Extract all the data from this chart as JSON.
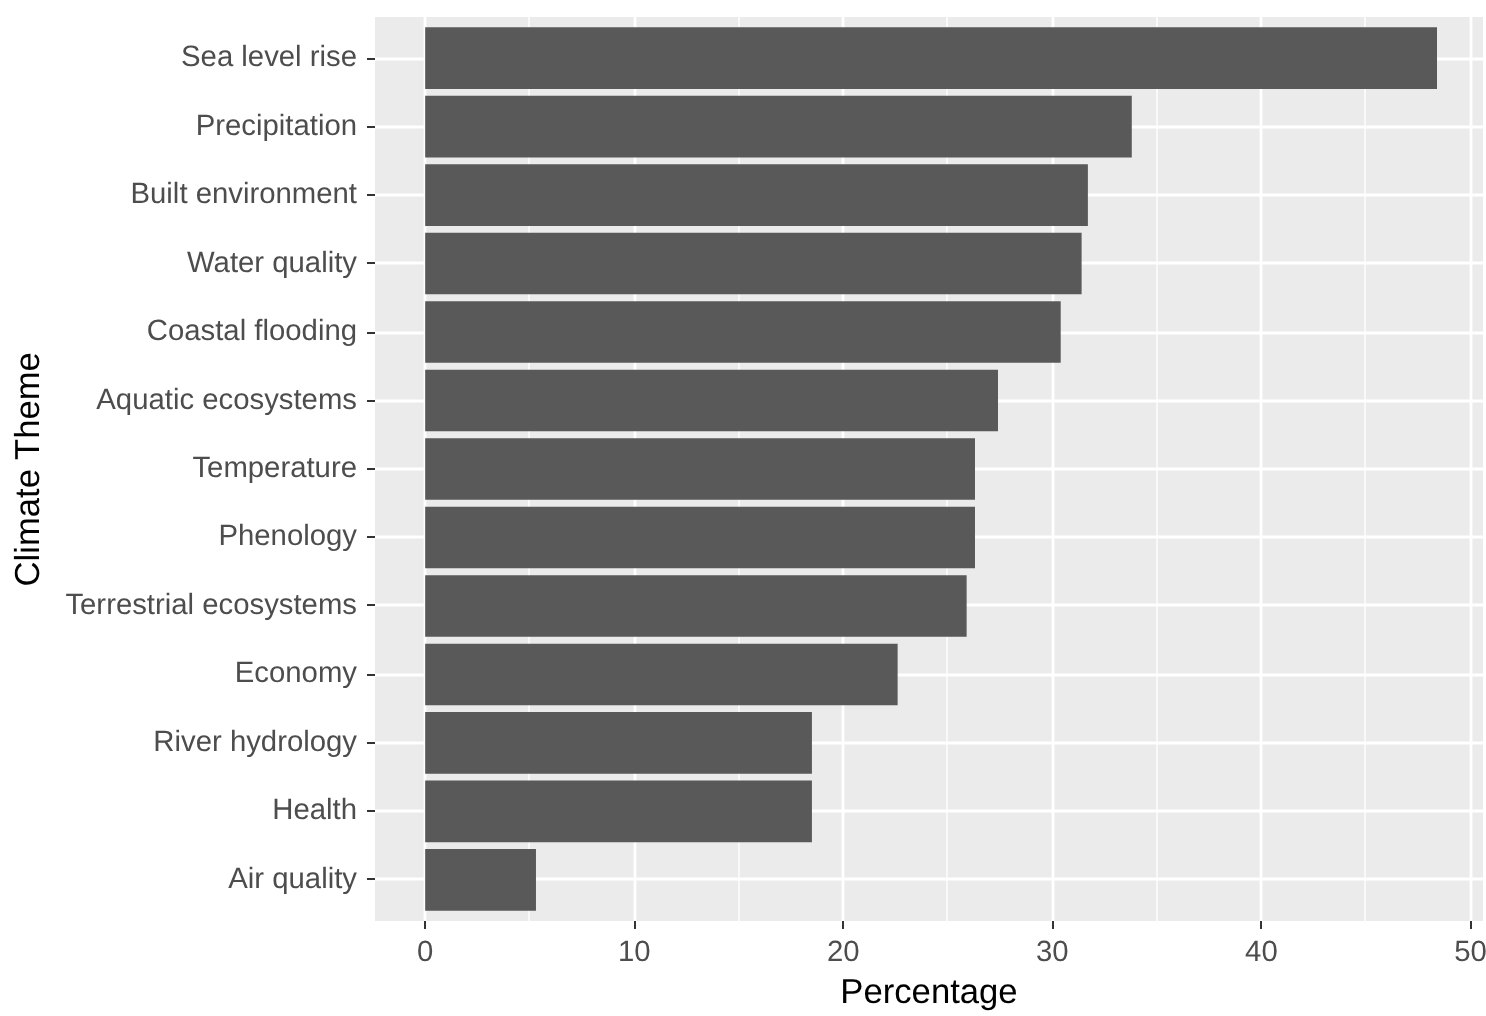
{
  "chart_data": {
    "type": "bar",
    "orientation": "horizontal",
    "xlabel": "Percentage",
    "ylabel": "Climate Theme",
    "categories": [
      "Sea level rise",
      "Precipitation",
      "Built environment",
      "Water quality",
      "Coastal flooding",
      "Aquatic ecosystems",
      "Temperature",
      "Phenology",
      "Terrestrial ecosystems",
      "Economy",
      "River hydrology",
      "Health",
      "Air quality"
    ],
    "values": [
      48.4,
      33.8,
      31.7,
      31.4,
      30.4,
      27.4,
      26.3,
      26.3,
      25.9,
      22.6,
      18.5,
      18.5,
      5.3
    ],
    "color": "#595959",
    "xlim": [
      -2.4,
      50.6
    ],
    "xticks": [
      0,
      10,
      20,
      30,
      40,
      50
    ],
    "grid": true
  }
}
